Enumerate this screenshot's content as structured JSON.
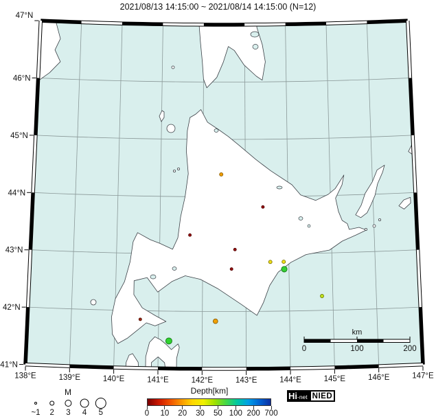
{
  "title": "2021/08/13 14:15:00 ~ 2021/08/14 14:15:00 (N=12)",
  "map": {
    "sea_color": "#d9efed",
    "land_color": "#ffffff",
    "grid_color": "#8a9898",
    "coast_color": "#3b4046",
    "lat_labels": [
      {
        "text": "47°N",
        "lat": 47
      },
      {
        "text": "46°N",
        "lat": 46
      },
      {
        "text": "45°N",
        "lat": 45
      },
      {
        "text": "44°N",
        "lat": 44
      },
      {
        "text": "43°N",
        "lat": 43
      },
      {
        "text": "42°N",
        "lat": 42
      },
      {
        "text": "41°N",
        "lat": 41
      }
    ],
    "lon_labels": [
      {
        "text": "138°E",
        "lon": 138
      },
      {
        "text": "139°E",
        "lon": 139
      },
      {
        "text": "140°E",
        "lon": 140
      },
      {
        "text": "141°E",
        "lon": 141
      },
      {
        "text": "142°E",
        "lon": 142
      },
      {
        "text": "143°E",
        "lon": 143
      },
      {
        "text": "144°E",
        "lon": 144
      },
      {
        "text": "145°E",
        "lon": 145
      },
      {
        "text": "146°E",
        "lon": 146
      },
      {
        "text": "147°E",
        "lon": 147
      }
    ]
  },
  "earthquakes": [
    {
      "lat": 44.39,
      "lon": 142.43,
      "mag": 1.7,
      "depth_km_est": 25,
      "color": "#f09e00",
      "stroke": "#8a5c00"
    },
    {
      "lat": 43.82,
      "lon": 143.41,
      "mag": 1.3,
      "depth_km_est": 5,
      "color": "#9b1212",
      "stroke": "#4d0000"
    },
    {
      "lat": 43.33,
      "lon": 141.7,
      "mag": 1.3,
      "depth_km_est": 5,
      "color": "#9b1212",
      "stroke": "#4d0000"
    },
    {
      "lat": 43.08,
      "lon": 142.75,
      "mag": 1.3,
      "depth_km_est": 5,
      "color": "#9b1212",
      "stroke": "#4d0000"
    },
    {
      "lat": 42.74,
      "lon": 142.67,
      "mag": 1.3,
      "depth_km_est": 5,
      "color": "#9b1212",
      "stroke": "#4d0000"
    },
    {
      "lat": 42.86,
      "lon": 143.57,
      "mag": 1.7,
      "depth_km_est": 35,
      "color": "#f0e019",
      "stroke": "#7d7400"
    },
    {
      "lat": 42.86,
      "lon": 143.88,
      "mag": 1.7,
      "depth_km_est": 35,
      "color": "#f0e019",
      "stroke": "#7d7400"
    },
    {
      "lat": 42.73,
      "lon": 143.89,
      "mag": 2.7,
      "depth_km_est": 60,
      "color": "#35cf35",
      "stroke": "#177a17"
    },
    {
      "lat": 42.25,
      "lon": 144.75,
      "mag": 1.7,
      "depth_km_est": 45,
      "color": "#c3e41c",
      "stroke": "#6d7e00"
    },
    {
      "lat": 41.85,
      "lon": 140.58,
      "mag": 1.3,
      "depth_km_est": 10,
      "color": "#a02818",
      "stroke": "#501000"
    },
    {
      "lat": 41.83,
      "lon": 142.3,
      "mag": 2.3,
      "depth_km_est": 25,
      "color": "#f0a000",
      "stroke": "#8a5c00"
    },
    {
      "lat": 41.48,
      "lon": 141.24,
      "mag": 3.0,
      "depth_km_est": 60,
      "color": "#2fd32f",
      "stroke": "#137513"
    }
  ],
  "scale_bar": {
    "unit_label": "km",
    "tick_labels": [
      "0",
      "100",
      "200"
    ],
    "length_km": 200
  },
  "magnitude_legend": {
    "title": "M",
    "items": [
      {
        "label": "~1",
        "mag": 1
      },
      {
        "label": "2",
        "mag": 2
      },
      {
        "label": "3",
        "mag": 3
      },
      {
        "label": "4",
        "mag": 4
      },
      {
        "label": "5",
        "mag": 5
      }
    ]
  },
  "depth_legend": {
    "title": "Depth[km]",
    "tick_labels": [
      "0",
      "10",
      "20",
      "30",
      "50",
      "100",
      "200",
      "700"
    ],
    "gradient_colors": [
      "#7a0000",
      "#cc1800",
      "#f05000",
      "#fa9600",
      "#ffd700",
      "#f0f000",
      "#a0e000",
      "#46d846",
      "#00c8a0",
      "#00a0e6",
      "#0064d4",
      "#0d2ea0"
    ]
  },
  "logo": {
    "hi": "Hi",
    "net": "-net",
    "nied": "NIED"
  }
}
